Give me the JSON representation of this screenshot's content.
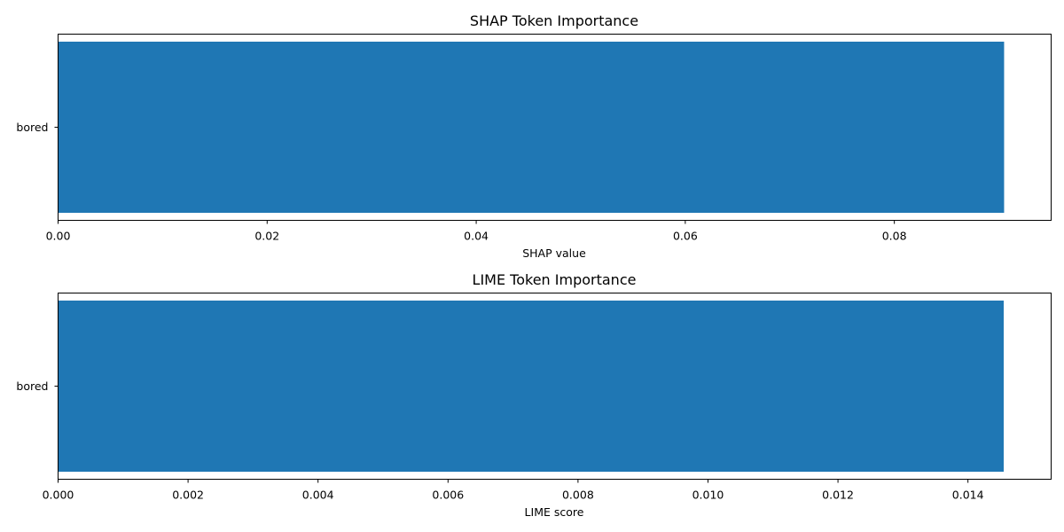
{
  "chart_data": [
    {
      "type": "bar",
      "orientation": "horizontal",
      "title": "SHAP Token Importance",
      "xlabel": "SHAP value",
      "ylabel": "",
      "categories": [
        "bored"
      ],
      "values": [
        0.0905
      ],
      "xlim": [
        0,
        0.095
      ],
      "xticks": [
        0.0,
        0.02,
        0.04,
        0.06,
        0.08
      ],
      "xtick_labels": [
        "0.00",
        "0.02",
        "0.04",
        "0.06",
        "0.08"
      ],
      "bar_color": "#1f77b4",
      "grid": false,
      "legend": "none"
    },
    {
      "type": "bar",
      "orientation": "horizontal",
      "title": "LIME Token Importance",
      "xlabel": "LIME score",
      "ylabel": "",
      "categories": [
        "bored"
      ],
      "values": [
        0.01455
      ],
      "xlim": [
        0,
        0.01528
      ],
      "xticks": [
        0.0,
        0.002,
        0.004,
        0.006,
        0.008,
        0.01,
        0.012,
        0.014
      ],
      "xtick_labels": [
        "0.000",
        "0.002",
        "0.004",
        "0.006",
        "0.008",
        "0.010",
        "0.012",
        "0.014"
      ],
      "bar_color": "#1f77b4",
      "grid": false,
      "legend": "none"
    }
  ]
}
